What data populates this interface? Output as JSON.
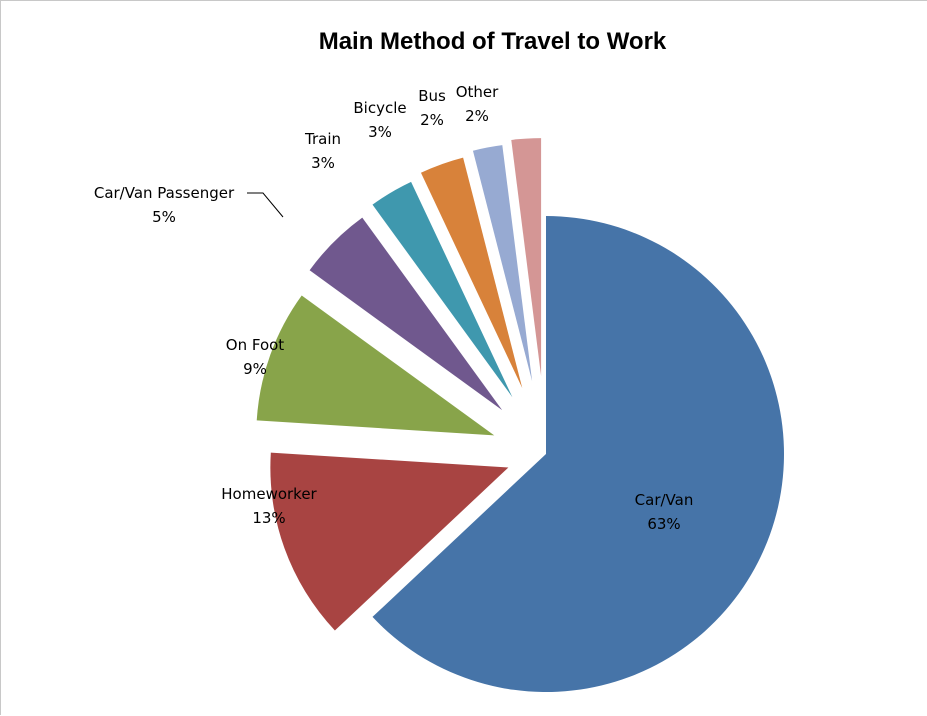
{
  "chart_data": {
    "type": "pie",
    "title": "Main Method of Travel to Work",
    "slices": [
      {
        "label": "Car/Van",
        "pct_label": "63%",
        "value": 63,
        "color": "#4674A8"
      },
      {
        "label": "Homeworker",
        "pct_label": "13%",
        "value": 13,
        "color": "#A84442"
      },
      {
        "label": "On Foot",
        "pct_label": "9%",
        "value": 9,
        "color": "#88A44A"
      },
      {
        "label": "Car/Van Passenger",
        "pct_label": "5%",
        "value": 5,
        "color": "#70588E"
      },
      {
        "label": "Train",
        "pct_label": "3%",
        "value": 3,
        "color": "#3F98AE"
      },
      {
        "label": "Bicycle",
        "pct_label": "3%",
        "value": 3,
        "color": "#D8823A"
      },
      {
        "label": "Bus",
        "pct_label": "2%",
        "value": 2,
        "color": "#97AAD2"
      },
      {
        "label": "Other",
        "pct_label": "2%",
        "value": 2,
        "color": "#D49695"
      }
    ],
    "exploded": true,
    "legend": "none"
  }
}
